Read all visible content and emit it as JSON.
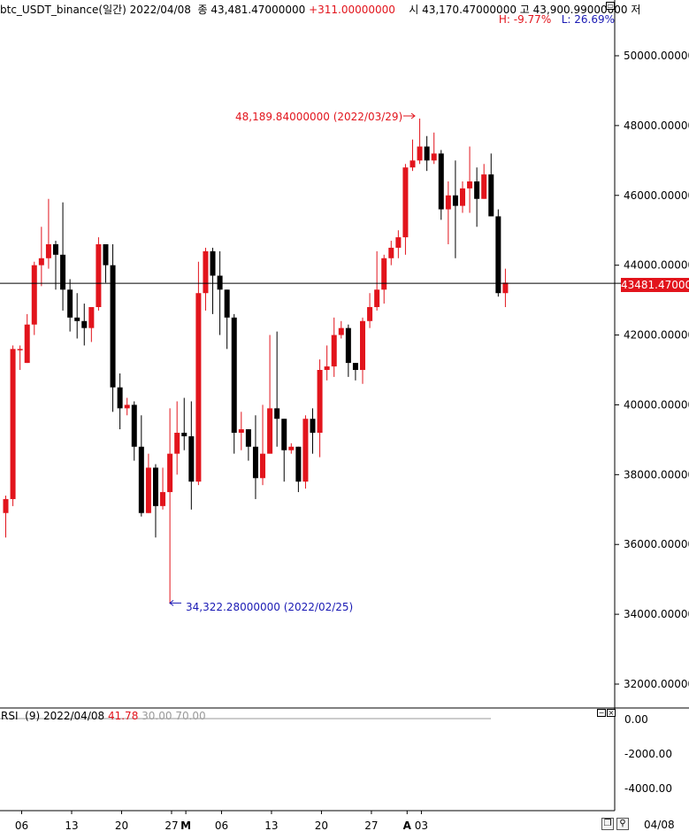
{
  "header": {
    "symbol": "btc_USDT_binance(일간)",
    "date": "2022/04/08",
    "close_label": "종",
    "close_value": "43,481.47000000",
    "change": "+311.00000000",
    "open_label": "시",
    "open_value": "43,170.47000000",
    "high_label": "고",
    "high_value": "43,900.99000000",
    "low_label": "저",
    "high_pct": "H: -9.77%",
    "low_pct": "L: 26.69%"
  },
  "rsi_panel": {
    "label": "RSI",
    "params": "(9)",
    "date": "2022/04/08",
    "value": "41.78",
    "levels": "30.00 70.00",
    "ticks": [
      "0.00",
      "-2000.00",
      "-4000.00"
    ]
  },
  "annotations": {
    "max": "48,189.84000000 (2022/03/29)",
    "min": "34,322.28000000 (2022/02/25)"
  },
  "current_price_label": "43481.470000",
  "axis": {
    "price_ticks": [
      "50000.000000",
      "48000.000000",
      "46000.000000",
      "44000.000000",
      "42000.000000",
      "40000.000000",
      "38000.000000",
      "36000.000000",
      "34000.000000",
      "32000.000000"
    ],
    "date_ticks": [
      {
        "label": "06",
        "bold": false,
        "i": 0
      },
      {
        "label": "13",
        "bold": false,
        "i": 7
      },
      {
        "label": "20",
        "bold": false,
        "i": 14
      },
      {
        "label": "27",
        "bold": false,
        "i": 21
      },
      {
        "label": "M",
        "bold": true,
        "i": 23
      },
      {
        "label": "06",
        "bold": false,
        "i": 28
      },
      {
        "label": "13",
        "bold": false,
        "i": 35
      },
      {
        "label": "20",
        "bold": false,
        "i": 42
      },
      {
        "label": "27",
        "bold": false,
        "i": 49
      },
      {
        "label": "A",
        "bold": true,
        "i": 54
      },
      {
        "label": "03",
        "bold": false,
        "i": 56
      }
    ],
    "corner_date": "04/08"
  },
  "colors": {
    "up": "#e2141c",
    "down": "#000000",
    "max_annotation": "#e2141c",
    "min_annotation": "#1a1ab4"
  },
  "chart_data": {
    "type": "candlestick",
    "ylim": [
      31500,
      51000
    ],
    "price_ticks": [
      50000,
      48000,
      46000,
      44000,
      42000,
      40000,
      38000,
      36000,
      34000,
      32000
    ],
    "current_price": 43481.47,
    "max": {
      "value": 48189.84,
      "date": "2022/03/29"
    },
    "min": {
      "value": 34322.28,
      "date": "2022/02/25"
    },
    "candles": [
      [
        36900,
        37300,
        36200,
        37400
      ],
      [
        37300,
        41600,
        37100,
        41700
      ],
      [
        41600,
        41600,
        41000,
        41700
      ],
      [
        41200,
        42300,
        41200,
        42600
      ],
      [
        42300,
        44000,
        42000,
        44100
      ],
      [
        44000,
        44200,
        43400,
        45100
      ],
      [
        44200,
        44600,
        43900,
        45900
      ],
      [
        44600,
        44300,
        43300,
        44700
      ],
      [
        44300,
        43300,
        42700,
        45800
      ],
      [
        43300,
        42500,
        42100,
        43600
      ],
      [
        42500,
        42400,
        41900,
        43200
      ],
      [
        42400,
        42200,
        41700,
        42900
      ],
      [
        42200,
        42800,
        41800,
        42800
      ],
      [
        42800,
        44600,
        42700,
        44800
      ],
      [
        44600,
        44000,
        43500,
        44600
      ],
      [
        44000,
        40500,
        39800,
        44600
      ],
      [
        40500,
        39900,
        39300,
        40900
      ],
      [
        39900,
        40000,
        39700,
        40200
      ],
      [
        40000,
        38800,
        38400,
        40100
      ],
      [
        38800,
        36900,
        36800,
        39700
      ],
      [
        36900,
        38200,
        36900,
        38600
      ],
      [
        38200,
        37100,
        36200,
        38300
      ],
      [
        37100,
        37500,
        37000,
        38200
      ],
      [
        37500,
        38600,
        34300,
        39900
      ],
      [
        38600,
        39200,
        38000,
        40100
      ],
      [
        39200,
        39100,
        38700,
        40200
      ],
      [
        39100,
        37800,
        37000,
        40100
      ],
      [
        37800,
        43200,
        37700,
        44100
      ],
      [
        43200,
        44400,
        42700,
        44500
      ],
      [
        44400,
        43700,
        42600,
        44500
      ],
      [
        43700,
        43300,
        42000,
        44400
      ],
      [
        43300,
        42500,
        41600,
        43300
      ],
      [
        42500,
        39200,
        38600,
        42600
      ],
      [
        39200,
        39300,
        38700,
        39800
      ],
      [
        39300,
        38800,
        38400,
        39300
      ],
      [
        38800,
        37900,
        37300,
        39700
      ],
      [
        37900,
        38600,
        37700,
        40000
      ],
      [
        38600,
        39900,
        38600,
        42000
      ],
      [
        39900,
        39600,
        38800,
        42100
      ],
      [
        39600,
        38700,
        37800,
        39600
      ],
      [
        38700,
        38800,
        38600,
        38900
      ],
      [
        38800,
        37800,
        37500,
        38800
      ],
      [
        37800,
        39600,
        37600,
        39700
      ],
      [
        39600,
        39200,
        38600,
        39900
      ],
      [
        39200,
        41000,
        38500,
        41300
      ],
      [
        41000,
        41100,
        40700,
        41700
      ],
      [
        41100,
        42000,
        40800,
        42500
      ],
      [
        42000,
        42200,
        41900,
        42400
      ],
      [
        42200,
        41200,
        40800,
        42300
      ],
      [
        41200,
        41000,
        40700,
        41200
      ],
      [
        41000,
        42400,
        40600,
        42500
      ],
      [
        42400,
        42800,
        42200,
        43200
      ],
      [
        42800,
        43300,
        42700,
        44400
      ],
      [
        43300,
        44200,
        42900,
        44300
      ],
      [
        44200,
        44500,
        44000,
        44700
      ],
      [
        44500,
        44800,
        44200,
        45000
      ],
      [
        44800,
        46800,
        44300,
        46900
      ],
      [
        46800,
        47000,
        46700,
        47600
      ],
      [
        47000,
        47400,
        46900,
        48200
      ],
      [
        47400,
        47000,
        46700,
        47700
      ],
      [
        47000,
        47200,
        46900,
        47800
      ],
      [
        47200,
        45600,
        45300,
        47300
      ],
      [
        45600,
        46000,
        44600,
        46400
      ],
      [
        46000,
        45700,
        44200,
        47000
      ],
      [
        45700,
        46200,
        45500,
        46400
      ],
      [
        46200,
        46400,
        45500,
        47400
      ],
      [
        46400,
        45900,
        45100,
        46800
      ],
      [
        45900,
        46600,
        45900,
        46900
      ],
      [
        46600,
        45400,
        45400,
        47200
      ],
      [
        45400,
        43200,
        43100,
        45600
      ],
      [
        43200,
        43500,
        42800,
        43900
      ]
    ]
  }
}
